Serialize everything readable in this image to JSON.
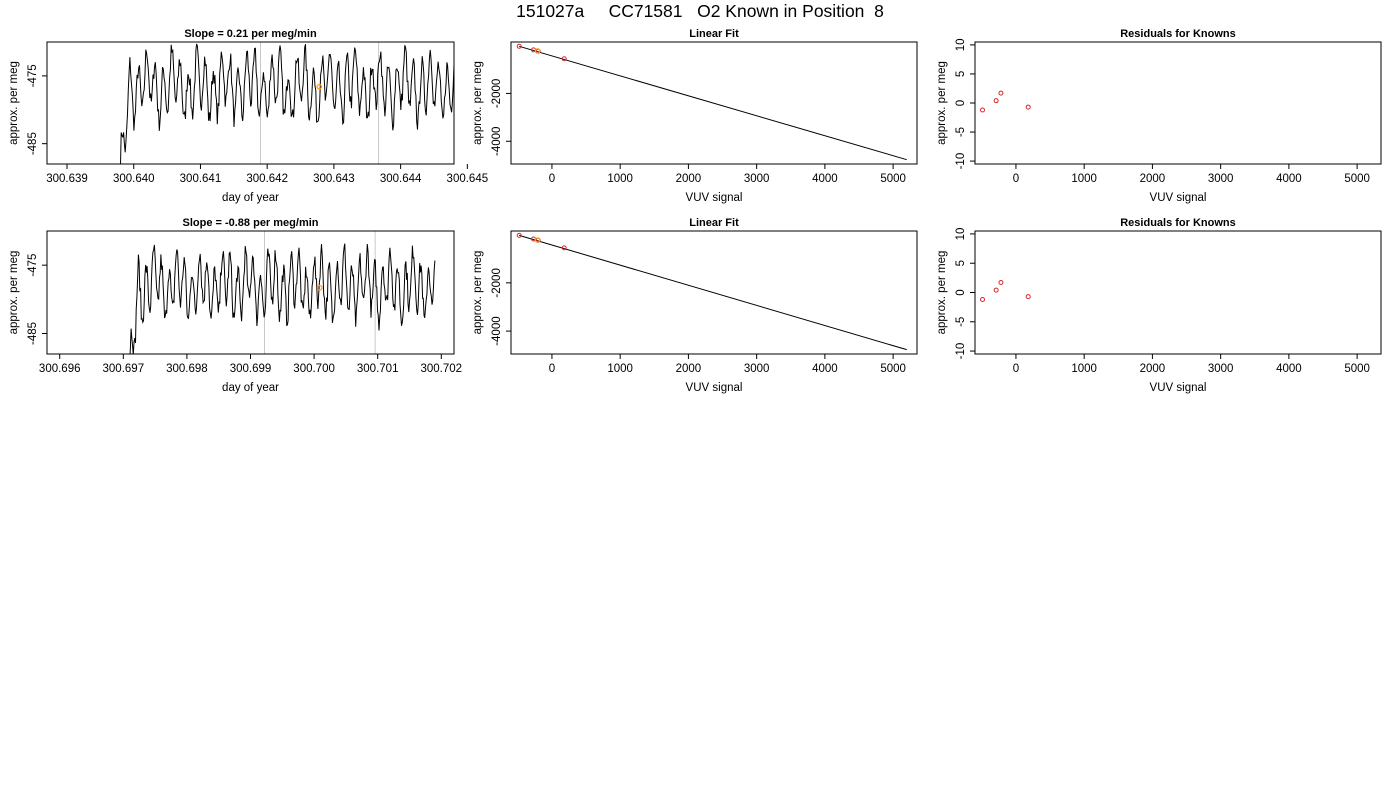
{
  "page_title": "151027a     CC71581   O2 Known in Position  8",
  "colors": {
    "trace": "#000000",
    "marker_known": "#d62728",
    "marker_highlight": "#ff9f1a",
    "vline": "#c8c8c8",
    "frame": "#000000"
  },
  "chart_data": [
    {
      "id": "row1-timeseries",
      "type": "line",
      "title": "Slope =  0.21  per meg/min",
      "xlabel": "day of year",
      "ylabel": "approx. per meg",
      "xlim": [
        300.6387,
        300.6448
      ],
      "ylim": [
        -488,
        -470
      ],
      "xticks": [
        300.639,
        300.64,
        300.641,
        300.642,
        300.643,
        300.644,
        300.645
      ],
      "xtick_labels": [
        "300.639",
        "300.640",
        "300.641",
        "300.642",
        "300.643",
        "300.644",
        "300.645"
      ],
      "yticks": [
        -475,
        -485
      ],
      "ytick_labels": [
        "-475",
        "-485"
      ],
      "grid": false,
      "vlines": [
        300.6419,
        300.64367
      ],
      "trace_start": 300.6398,
      "trace_end": 300.6448,
      "trace_mean": -476.5,
      "highlight": {
        "x": 300.64278,
        "y": -476.6
      }
    },
    {
      "id": "row1-linear-fit",
      "type": "scatter",
      "title": "Linear Fit",
      "xlabel": "VUV signal",
      "ylabel": "approx. per meg",
      "xlim": [
        -600,
        5350
      ],
      "ylim": [
        -4950,
        150
      ],
      "xticks": [
        0,
        1000,
        2000,
        3000,
        4000,
        5000
      ],
      "xtick_labels": [
        "0",
        "1000",
        "2000",
        "3000",
        "4000",
        "5000"
      ],
      "yticks": [
        -2000,
        -4000
      ],
      "ytick_labels": [
        "-2000",
        "-4000"
      ],
      "grid": false,
      "x": [
        -480,
        -270,
        -200,
        180
      ],
      "y": [
        -30,
        -180,
        -235,
        -550
      ],
      "highlight": {
        "x": -210,
        "y": -225
      },
      "fit_line": {
        "x": [
          -480,
          5200
        ],
        "y": [
          -30,
          -4770
        ]
      }
    },
    {
      "id": "row1-residuals",
      "type": "scatter",
      "title": "Residuals for Knowns",
      "xlabel": "VUV signal",
      "ylabel": "approx. per meg",
      "xlim": [
        -600,
        5350
      ],
      "ylim": [
        -10.5,
        10.5
      ],
      "xticks": [
        0,
        1000,
        2000,
        3000,
        4000,
        5000
      ],
      "xtick_labels": [
        "0",
        "1000",
        "2000",
        "3000",
        "4000",
        "5000"
      ],
      "yticks": [
        10,
        5,
        0,
        -5,
        -10
      ],
      "ytick_labels": [
        "10",
        "5",
        "0",
        "-5",
        "-10"
      ],
      "grid": false,
      "x": [
        -490,
        -290,
        -220,
        180
      ],
      "y": [
        -1.2,
        0.4,
        1.7,
        -0.7
      ]
    },
    {
      "id": "row2-timeseries",
      "type": "line",
      "title": "Slope =  -0.88  per meg/min",
      "xlabel": "day of year",
      "ylabel": "approx. per meg",
      "xlim": [
        300.6958,
        300.7022
      ],
      "ylim": [
        -488,
        -470
      ],
      "xticks": [
        300.696,
        300.697,
        300.698,
        300.699,
        300.7,
        300.701,
        300.702
      ],
      "xtick_labels": [
        "300.696",
        "300.697",
        "300.698",
        "300.699",
        "300.700",
        "300.701",
        "300.702"
      ],
      "yticks": [
        -475,
        -485
      ],
      "ytick_labels": [
        "-475",
        "-485"
      ],
      "grid": false,
      "vlines": [
        300.69922,
        300.70096
      ],
      "trace_start": 300.6971,
      "trace_end": 300.7019,
      "trace_mean": -478.0,
      "highlight": {
        "x": 300.70009,
        "y": -478.3
      }
    },
    {
      "id": "row2-linear-fit",
      "type": "scatter",
      "title": "Linear Fit",
      "xlabel": "VUV signal",
      "ylabel": "approx. per meg",
      "xlim": [
        -600,
        5350
      ],
      "ylim": [
        -4950,
        150
      ],
      "xticks": [
        0,
        1000,
        2000,
        3000,
        4000,
        5000
      ],
      "xtick_labels": [
        "0",
        "1000",
        "2000",
        "3000",
        "4000",
        "5000"
      ],
      "yticks": [
        -2000,
        -4000
      ],
      "ytick_labels": [
        "-2000",
        "-4000"
      ],
      "grid": false,
      "x": [
        -480,
        -270,
        -200,
        180
      ],
      "y": [
        -30,
        -180,
        -235,
        -550
      ],
      "highlight": {
        "x": -210,
        "y": -225
      },
      "fit_line": {
        "x": [
          -480,
          5200
        ],
        "y": [
          -30,
          -4770
        ]
      }
    },
    {
      "id": "row2-residuals",
      "type": "scatter",
      "title": "Residuals for Knowns",
      "xlabel": "VUV signal",
      "ylabel": "approx. per meg",
      "xlim": [
        -600,
        5350
      ],
      "ylim": [
        -10.5,
        10.5
      ],
      "xticks": [
        0,
        1000,
        2000,
        3000,
        4000,
        5000
      ],
      "xtick_labels": [
        "0",
        "1000",
        "2000",
        "3000",
        "4000",
        "5000"
      ],
      "yticks": [
        10,
        5,
        0,
        -5,
        -10
      ],
      "ytick_labels": [
        "10",
        "5",
        "0",
        "-5",
        "-10"
      ],
      "grid": false,
      "x": [
        -490,
        -290,
        -220,
        180
      ],
      "y": [
        -1.2,
        0.4,
        1.7,
        -0.7
      ]
    }
  ]
}
